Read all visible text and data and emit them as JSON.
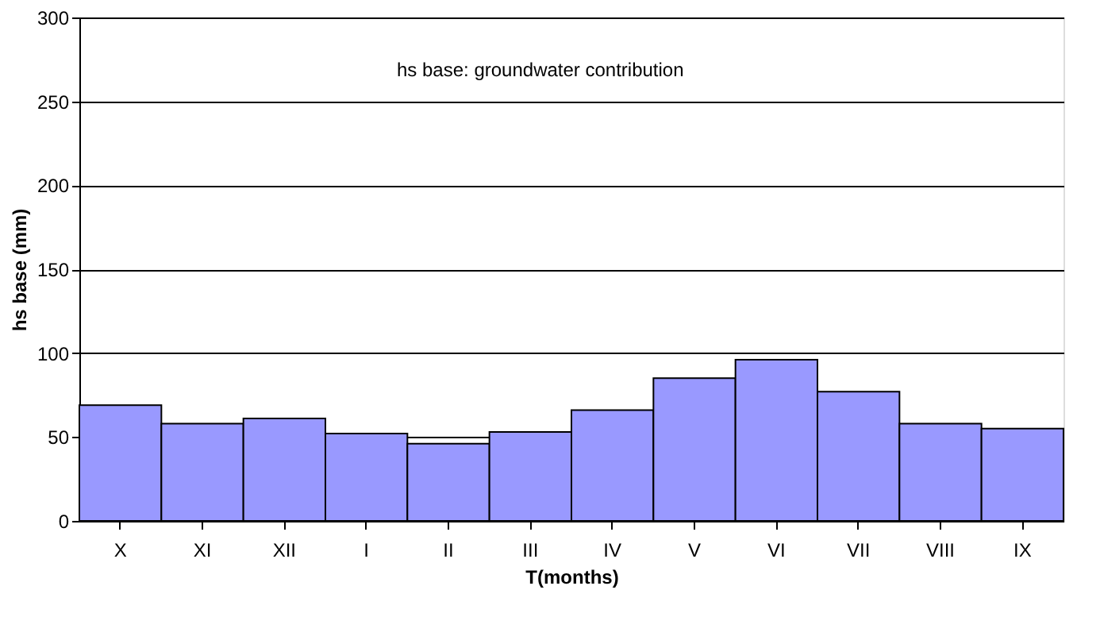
{
  "chart_data": {
    "type": "bar",
    "xlabel": "T(months)",
    "ylabel": "hs base (mm)",
    "categories": [
      "X",
      "XI",
      "XII",
      "I",
      "II",
      "III",
      "IV",
      "V",
      "VI",
      "VII",
      "VIII",
      "IX"
    ],
    "values": [
      69,
      58,
      61,
      52,
      46,
      53,
      66,
      85,
      96,
      77,
      58,
      55
    ],
    "color": "#9999ff",
    "ylim": [
      0,
      300
    ],
    "yticks": [
      0,
      50,
      100,
      150,
      200,
      250,
      300
    ],
    "grid": "y",
    "annotations": [
      "hs base: groundwater contribution"
    ]
  }
}
